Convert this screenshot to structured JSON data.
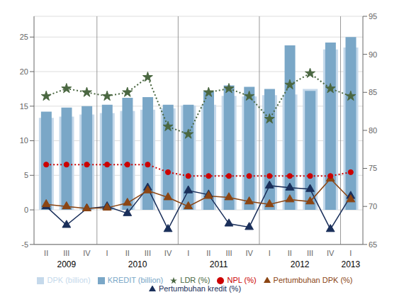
{
  "chart_data": {
    "type": "bar",
    "categories": [
      "II",
      "III",
      "IV",
      "I",
      "II",
      "III",
      "IV",
      "I",
      "II",
      "III",
      "IV",
      "I",
      "II",
      "III",
      "IV",
      "I"
    ],
    "series": [
      {
        "name": "DPK (billion)",
        "type": "bar",
        "color": "#c5d9eb",
        "values": [
          13.3,
          13.5,
          13.8,
          14.0,
          14.3,
          14.5,
          14.7,
          15.1,
          15.2,
          16.5,
          16.4,
          16.6,
          16.7,
          17.5,
          23.2,
          23.5
        ]
      },
      {
        "name": "KREDIT (billion)",
        "type": "bar",
        "color": "#7aa7c7",
        "values": [
          14.2,
          14.8,
          15.0,
          15.2,
          16.2,
          16.3,
          15.2,
          15.2,
          17.2,
          18.0,
          17.8,
          17.5,
          23.8,
          17.2,
          24.2,
          25.0
        ]
      },
      {
        "name": "Pertumbuhan kredit (%)",
        "type": "line",
        "color": "#1a2f5a",
        "marker": "triangle",
        "line_style": "solid",
        "values": [
          0.5,
          -2.2,
          0.2,
          0.5,
          -0.5,
          3.2,
          -2.8,
          2.8,
          2.2,
          -2.0,
          -2.5,
          3.5,
          3.2,
          3.0,
          -2.8,
          2.0
        ]
      },
      {
        "name": "Pertumbuhan DPK (%)",
        "type": "line",
        "color": "#8b4513",
        "marker": "triangle",
        "line_style": "solid",
        "values": [
          0.8,
          0.5,
          0.2,
          0.3,
          1.0,
          2.8,
          1.8,
          0.5,
          2.0,
          1.8,
          1.2,
          0.8,
          1.5,
          1.2,
          4.5,
          1.5
        ]
      },
      {
        "name": "NPL (%)",
        "type": "line",
        "axis": "y2",
        "color": "#cc0000",
        "marker": "circle",
        "line_style": "dotted",
        "values": [
          75.5,
          75.5,
          75.5,
          75.5,
          75.5,
          75.5,
          74.5,
          74.0,
          74.0,
          74.0,
          74.0,
          74.0,
          74.0,
          74.0,
          74.0,
          74.5
        ]
      },
      {
        "name": "LDR (%)",
        "type": "line",
        "axis": "y2",
        "color": "#4a6741",
        "marker": "star",
        "line_style": "dotted",
        "values": [
          84.5,
          85.5,
          85.0,
          84.5,
          85.0,
          87.0,
          80.5,
          79.5,
          85.0,
          85.5,
          84.5,
          81.5,
          86.0,
          87.5,
          85.5,
          84.5
        ]
      }
    ],
    "ylim": [
      -5,
      28
    ],
    "yticks": [
      -5,
      0,
      5,
      10,
      15,
      20,
      25
    ],
    "y2lim": [
      65,
      95
    ],
    "y2ticks": [
      65,
      70,
      75,
      80,
      85,
      90,
      95
    ],
    "grid": true,
    "legend": "bottom",
    "annotations": [
      {
        "text": "2009",
        "x": 1.0
      },
      {
        "text": "2010",
        "x": 4.5
      },
      {
        "text": "2011",
        "x": 8.5
      },
      {
        "text": "2012",
        "x": 12.5
      },
      {
        "text": "2013",
        "x": 15.0
      }
    ],
    "dividers": [
      2.5,
      6.5,
      10.5,
      14.5
    ]
  }
}
